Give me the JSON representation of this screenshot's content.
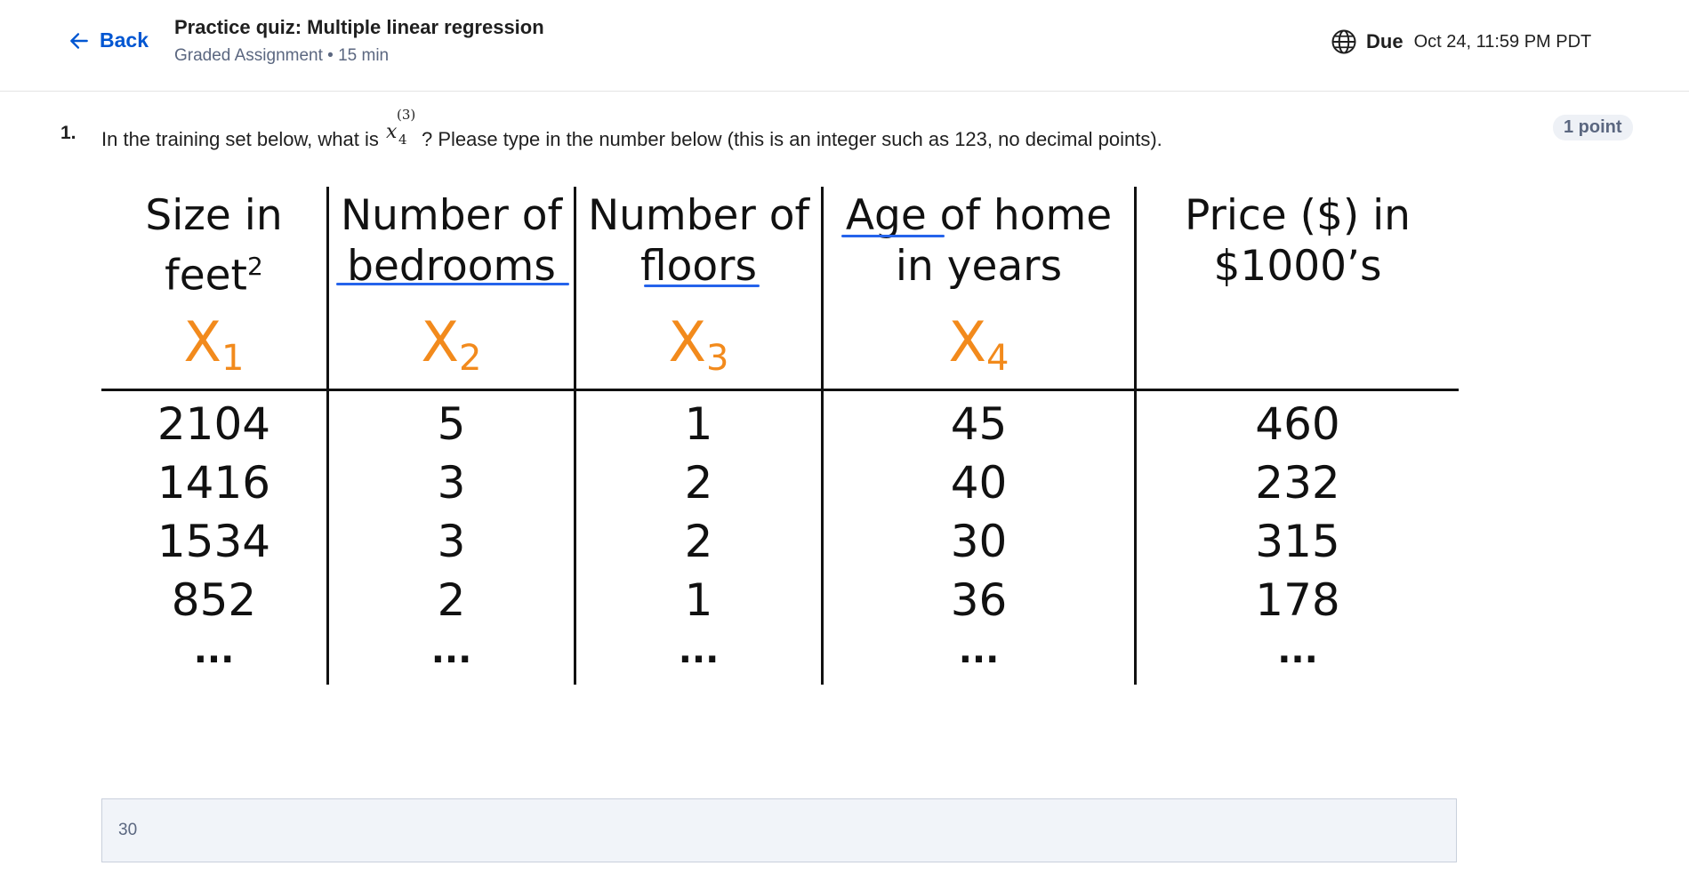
{
  "header": {
    "back_label": "Back",
    "title": "Practice quiz: Multiple linear regression",
    "subtitle": "Graded Assignment • 15 min",
    "due_label": "Due",
    "due_date": "Oct 24, 11:59 PM PDT",
    "icons": {
      "back": "arrow-left-icon",
      "due": "globe-icon"
    }
  },
  "question": {
    "number": "1.",
    "text_before": "In the training set below, what is ",
    "math_base": "x",
    "math_sup": "(3)",
    "math_sub": "4",
    "text_after": "? Please type in the number below (this is an integer such as 123, no decimal points).",
    "points": "1 point"
  },
  "table": {
    "columns": [
      {
        "header1": "Size in",
        "header2": "feet",
        "header2_sup": "2",
        "feature": "X",
        "feature_sub": "1"
      },
      {
        "header1": "Number of",
        "header2": "bedrooms",
        "feature": "X",
        "feature_sub": "2"
      },
      {
        "header1": "Number of",
        "header2": "floors",
        "feature": "X",
        "feature_sub": "3"
      },
      {
        "header1": "Age of home",
        "header2": "in years",
        "feature": "X",
        "feature_sub": "4"
      },
      {
        "header1": "Price ($) in",
        "header2": "$1000’s",
        "feature": "",
        "feature_sub": ""
      }
    ],
    "rows": [
      [
        "2104",
        "5",
        "1",
        "45",
        "460"
      ],
      [
        "1416",
        "3",
        "2",
        "40",
        "232"
      ],
      [
        "1534",
        "3",
        "2",
        "30",
        "315"
      ],
      [
        "852",
        "2",
        "1",
        "36",
        "178"
      ]
    ],
    "ellipsis": "...",
    "colors": {
      "feature_label": "#f28a1c",
      "underline": "#2563eb"
    }
  },
  "answer": {
    "value": "30",
    "placeholder": ""
  }
}
